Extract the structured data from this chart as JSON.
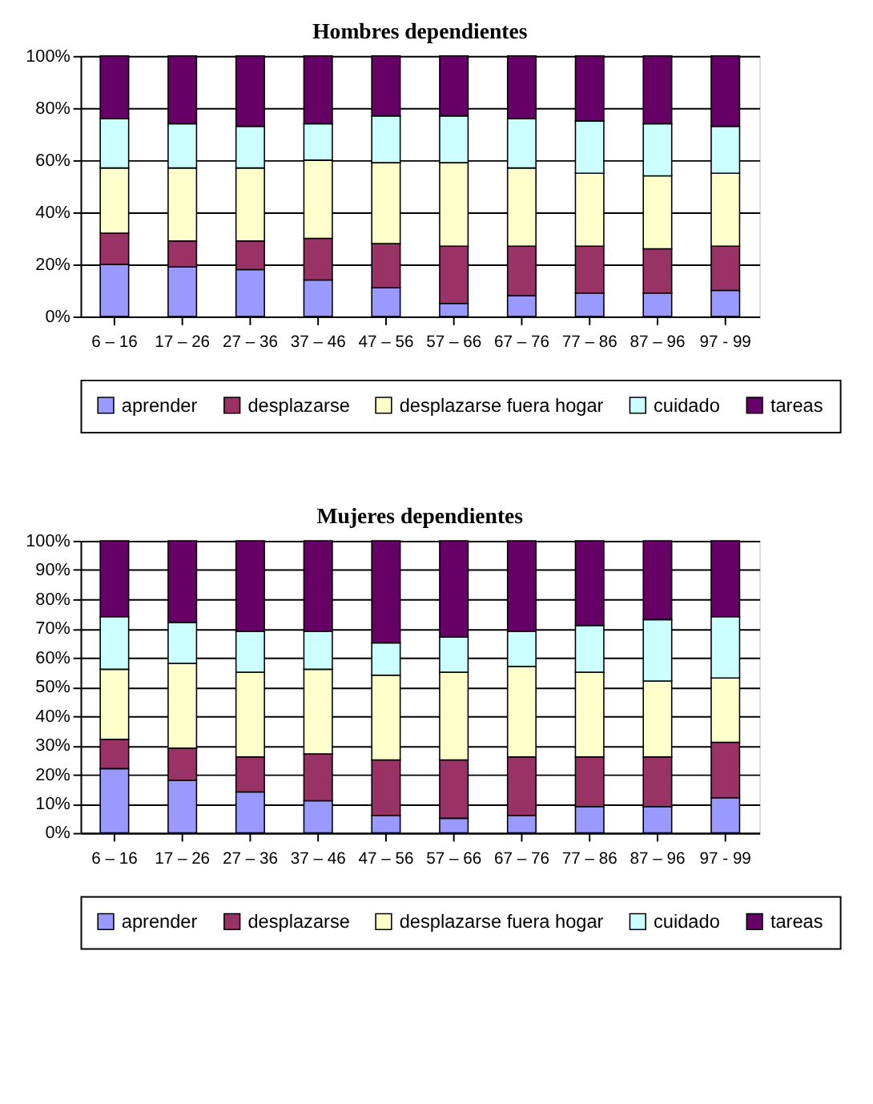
{
  "chart_data": [
    {
      "type": "bar",
      "title": "Hombres dependientes",
      "stacked": true,
      "categories": [
        "6 – 16",
        "17 – 26",
        "27 – 36",
        "37 – 46",
        "47 – 56",
        "57 – 66",
        "67 – 76",
        "77 – 86",
        "87 – 96",
        "97 - 99"
      ],
      "series": [
        {
          "name": "aprender",
          "color": "#9999ff",
          "values": [
            20,
            19,
            18,
            14,
            11,
            5,
            8,
            9,
            9,
            10
          ]
        },
        {
          "name": "desplazarse",
          "color": "#993366",
          "values": [
            12,
            10,
            11,
            16,
            17,
            22,
            19,
            18,
            17,
            17
          ]
        },
        {
          "name": "desplazarse fuera hogar",
          "color": "#ffffcc",
          "values": [
            25,
            28,
            28,
            30,
            31,
            32,
            30,
            28,
            28,
            28
          ]
        },
        {
          "name": "cuidado",
          "color": "#ccffff",
          "values": [
            19,
            17,
            16,
            14,
            18,
            18,
            19,
            20,
            20,
            18
          ]
        },
        {
          "name": "tareas",
          "color": "#660066",
          "values": [
            24,
            26,
            27,
            26,
            23,
            23,
            24,
            25,
            26,
            27
          ]
        }
      ],
      "ylim": [
        0,
        100
      ],
      "yticks": [
        {
          "value": 0,
          "label": "0%"
        },
        {
          "value": 20,
          "label": "20%"
        },
        {
          "value": 40,
          "label": "40%"
        },
        {
          "value": 60,
          "label": "60%"
        },
        {
          "value": 80,
          "label": "80%"
        },
        {
          "value": 100,
          "label": "100%"
        }
      ],
      "grid": "y",
      "legend": "bottom"
    },
    {
      "type": "bar",
      "title": "Mujeres dependientes",
      "stacked": true,
      "categories": [
        "6 – 16",
        "17 – 26",
        "27 – 36",
        "37 – 46",
        "47 – 56",
        "57 – 66",
        "67 – 76",
        "77 – 86",
        "87 – 96",
        "97 - 99"
      ],
      "series": [
        {
          "name": "aprender",
          "color": "#9999ff",
          "values": [
            22,
            18,
            14,
            11,
            6,
            5,
            6,
            9,
            9,
            12
          ]
        },
        {
          "name": "desplazarse",
          "color": "#993366",
          "values": [
            10,
            11,
            12,
            16,
            19,
            20,
            20,
            17,
            17,
            19
          ]
        },
        {
          "name": "desplazarse fuera hogar",
          "color": "#ffffcc",
          "values": [
            24,
            29,
            29,
            29,
            29,
            30,
            31,
            29,
            26,
            22
          ]
        },
        {
          "name": "cuidado",
          "color": "#ccffff",
          "values": [
            18,
            14,
            14,
            13,
            11,
            12,
            12,
            16,
            21,
            21
          ]
        },
        {
          "name": "tareas",
          "color": "#660066",
          "values": [
            26,
            28,
            31,
            31,
            35,
            33,
            31,
            29,
            27,
            26
          ]
        }
      ],
      "ylim": [
        0,
        100
      ],
      "yticks": [
        {
          "value": 0,
          "label": "0%"
        },
        {
          "value": 10,
          "label": "10%"
        },
        {
          "value": 20,
          "label": "20%"
        },
        {
          "value": 30,
          "label": "30%"
        },
        {
          "value": 40,
          "label": "40%"
        },
        {
          "value": 50,
          "label": "50%"
        },
        {
          "value": 60,
          "label": "60%"
        },
        {
          "value": 70,
          "label": "70%"
        },
        {
          "value": 80,
          "label": "80%"
        },
        {
          "value": 90,
          "label": "90%"
        },
        {
          "value": 100,
          "label": "100%"
        }
      ],
      "grid": "y",
      "legend": "bottom"
    }
  ]
}
